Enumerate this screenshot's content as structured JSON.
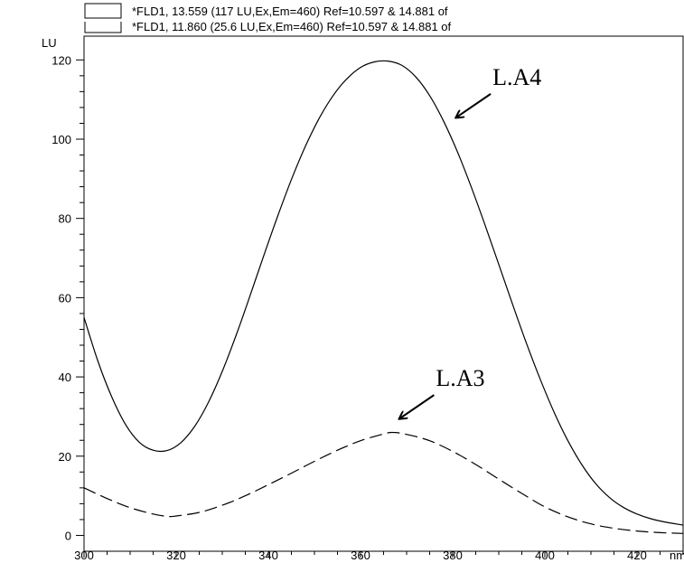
{
  "legend": {
    "entries": [
      "*FLD1, 13.559 (117 LU,Ex,Em=460) Ref=10.597 & 14.881 of",
      "*FLD1, 11.860 (25.6 LU,Ex,Em=460) Ref=10.597 & 14.881 of"
    ]
  },
  "chart_data": {
    "type": "line",
    "ylabel": "LU",
    "xunit": "nm",
    "xlim": [
      300,
      430
    ],
    "ylim": [
      -4,
      126
    ],
    "x_ticks": [
      "300",
      "320",
      "340",
      "360",
      "380",
      "400",
      "420"
    ],
    "y_ticks": [
      "0",
      "20",
      "40",
      "60",
      "80",
      "100",
      "120"
    ],
    "series": [
      {
        "style": "solid",
        "x": [
          300,
          303,
          306,
          309,
          312,
          315,
          318,
          321,
          324,
          327,
          330,
          333,
          336,
          339,
          342,
          345,
          348,
          351,
          354,
          357,
          360,
          363,
          366,
          369,
          372,
          375,
          378,
          381,
          384,
          387,
          390,
          393,
          396,
          399,
          402,
          405,
          408,
          411,
          414,
          417,
          420,
          423,
          426,
          430
        ],
        "y": [
          55,
          44,
          35,
          28,
          23.5,
          21.5,
          21.4,
          23.4,
          27.5,
          33.6,
          41.4,
          50.5,
          60.4,
          70.6,
          80.5,
          89.8,
          98.1,
          105.2,
          110.9,
          115.2,
          118.1,
          119.5,
          119.7,
          118.6,
          115.7,
          111.0,
          104.6,
          96.9,
          88.0,
          78.4,
          68.4,
          58.3,
          48.5,
          39.4,
          31.1,
          23.9,
          17.9,
          13.1,
          9.6,
          7.1,
          5.4,
          4.2,
          3.4,
          2.6
        ]
      },
      {
        "style": "dashed",
        "x": [
          300,
          305,
          310,
          315,
          318,
          320,
          325,
          330,
          335,
          340,
          345,
          350,
          355,
          360,
          365,
          367,
          370,
          375,
          380,
          385,
          390,
          395,
          400,
          405,
          410,
          415,
          420,
          425,
          430
        ],
        "y": [
          12,
          9.3,
          7.0,
          5.4,
          4.8,
          4.9,
          5.8,
          7.6,
          10.0,
          12.8,
          15.7,
          18.7,
          21.5,
          23.9,
          25.6,
          26.0,
          25.5,
          23.9,
          21.2,
          17.9,
          14.2,
          10.6,
          7.2,
          4.7,
          2.9,
          1.8,
          1.1,
          0.7,
          0.5
        ]
      }
    ],
    "annotations": [
      {
        "text": "L.A4",
        "target_x": 380.8,
        "target_y": 105.5
      },
      {
        "text": "L.A3",
        "target_x": 368.5,
        "target_y": 29.5
      }
    ]
  }
}
